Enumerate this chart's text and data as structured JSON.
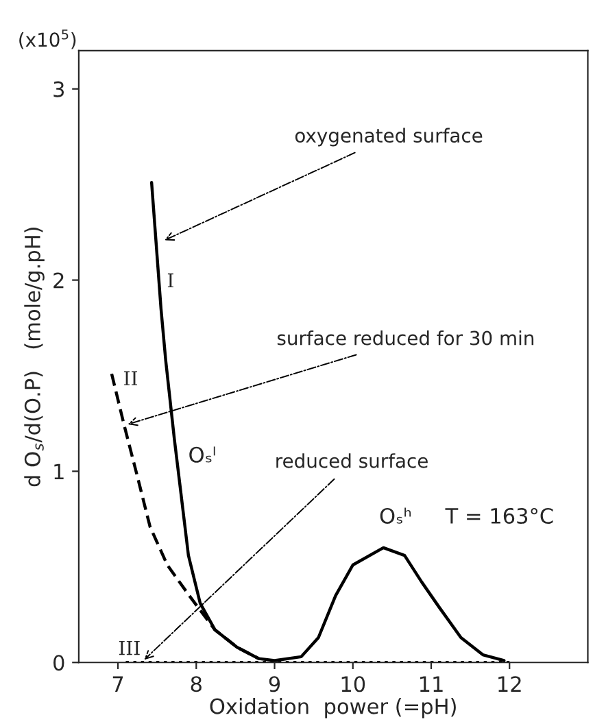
{
  "chart_data": {
    "type": "line",
    "xlabel": "Oxidation  power (=pH)",
    "ylabel": "d O$_{s}$/d(O.P)   (mole/g.pH)",
    "xlim": [
      6.5,
      13
    ],
    "ylim": [
      0,
      3.2
    ],
    "xticks": [
      7,
      8,
      9,
      10,
      11,
      12
    ],
    "yticks": [
      0,
      1,
      2,
      3
    ],
    "grid": false,
    "marker": "none",
    "series": [
      {
        "name": "I",
        "color": "#000000",
        "line_style": "solid",
        "x": [
          7.43,
          7.55,
          7.61,
          7.72,
          7.8,
          7.9,
          8.05,
          8.24,
          8.52,
          8.8,
          9.0,
          9.34,
          9.56,
          9.78,
          10.0,
          10.39,
          10.66,
          10.88,
          11.1,
          11.38,
          11.66,
          11.93
        ],
        "values": [
          2.51,
          1.85,
          1.58,
          1.17,
          0.9,
          0.56,
          0.31,
          0.17,
          0.08,
          0.02,
          0.01,
          0.03,
          0.13,
          0.35,
          0.51,
          0.6,
          0.56,
          0.42,
          0.29,
          0.13,
          0.04,
          0.01
        ]
      },
      {
        "name": "II",
        "color": "#000000",
        "line_style": "dashed",
        "x": [
          6.92,
          7.08,
          7.25,
          7.41,
          7.63,
          7.91,
          8.24,
          8.52,
          8.8
        ],
        "values": [
          1.51,
          1.24,
          0.97,
          0.71,
          0.51,
          0.35,
          0.17,
          0.08,
          0.02
        ]
      },
      {
        "name": "III",
        "color": "#000000",
        "line_style": "dotted",
        "x": [
          7.1,
          8,
          9,
          10,
          11,
          12
        ],
        "values": [
          0,
          0,
          0,
          0,
          0,
          0
        ]
      }
    ],
    "annotations": [
      {
        "text": "oxygenated surface",
        "x": 7.55,
        "y": 2.2
      },
      {
        "text": "surface reduced for 30 min",
        "x": 7.08,
        "y": 1.24
      },
      {
        "text": "reduced surface",
        "x": 7.3,
        "y": 0
      },
      "Oₛˡ",
      "Oₛʰ",
      "T = 163°C",
      "(x10$^{5}$)"
    ]
  }
}
